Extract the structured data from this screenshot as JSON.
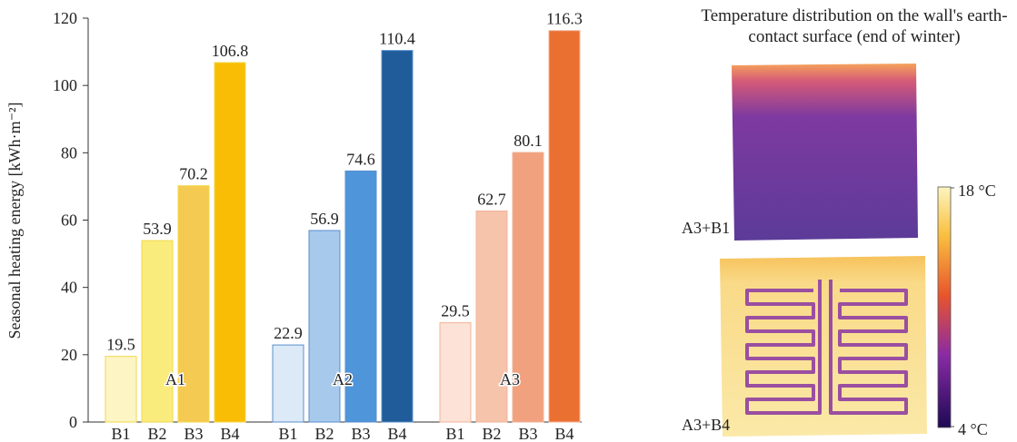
{
  "chart_data": [
    {
      "type": "bar",
      "ylabel": "Seasonal heating energy [kWh·m⁻²]",
      "ylim": [
        0,
        120
      ],
      "yticks": [
        0,
        20,
        40,
        60,
        80,
        100,
        120
      ],
      "groups": [
        {
          "name": "A1",
          "categories": [
            "B1",
            "B2",
            "B3",
            "B4"
          ],
          "values": [
            19.5,
            53.9,
            70.2,
            106.8
          ],
          "colors": [
            "#fdf5c4",
            "#faec7c",
            "#f5ca52",
            "#f9bd06"
          ],
          "edge": "#f2d84a"
        },
        {
          "name": "A2",
          "categories": [
            "B1",
            "B2",
            "B3",
            "B4"
          ],
          "values": [
            22.9,
            56.9,
            74.6,
            110.4
          ],
          "colors": [
            "#dce9f7",
            "#a7c9ec",
            "#4f95da",
            "#1f5c99"
          ],
          "edge": "#5a8fcc"
        },
        {
          "name": "A3",
          "categories": [
            "B1",
            "B2",
            "B3",
            "B4"
          ],
          "values": [
            29.5,
            62.7,
            80.1,
            116.3
          ],
          "colors": [
            "#fce2d7",
            "#f6c3ab",
            "#f1a17e",
            "#ea7032"
          ],
          "edge": "#f0b49a"
        }
      ]
    },
    {
      "type": "image",
      "title": "Temperature distribution on the wall's earth-contact surface (end of winter)",
      "panels": [
        {
          "label": "A3+B1"
        },
        {
          "label": "A3+B4"
        }
      ],
      "colorbar": {
        "clim": [
          4,
          18
        ],
        "ticks": [
          {
            "value": 18,
            "label": "18 °C"
          },
          {
            "value": 4,
            "label": "4 °C"
          }
        ]
      }
    }
  ]
}
